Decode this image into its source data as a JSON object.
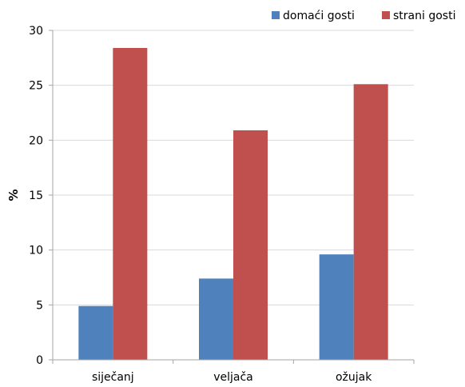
{
  "chart_data": {
    "type": "bar",
    "title": "",
    "xlabel": "",
    "ylabel": "%",
    "ylim": [
      0,
      30
    ],
    "yticks": [
      0,
      5,
      10,
      15,
      20,
      25,
      30
    ],
    "grid": true,
    "legend_position": "top-right",
    "categories": [
      "siječanj",
      "veljača",
      "ožujak"
    ],
    "series": [
      {
        "name": "domaći gosti",
        "color": "#4f81bd",
        "values": [
          4.9,
          7.4,
          9.6
        ]
      },
      {
        "name": "strani gosti",
        "color": "#c0504d",
        "values": [
          28.4,
          20.9,
          25.1
        ]
      }
    ]
  }
}
